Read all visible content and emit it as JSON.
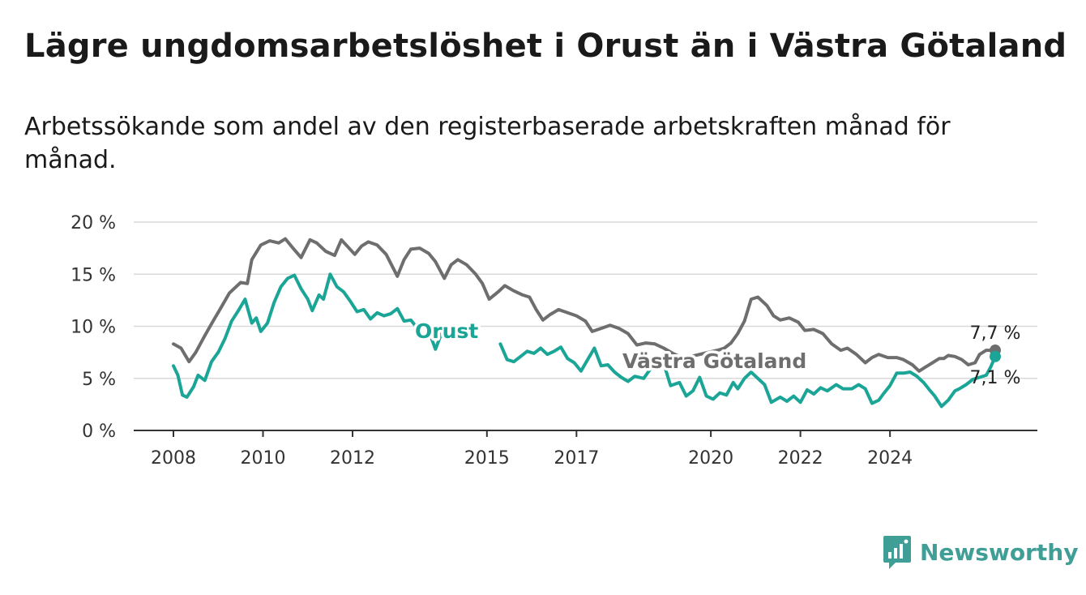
{
  "header": {
    "title": "Lägre ungdomsarbetslöshet i Orust än i Västra Götaland",
    "subtitle": "Arbetssökande som andel av den registerbaserade arbetskraften månad för månad."
  },
  "brand": {
    "name": "Newsworthy",
    "icon": "newsworthy-logo-icon",
    "color": "#3f9e96"
  },
  "chart_data": {
    "type": "line",
    "xlabel": "",
    "ylabel": "",
    "xlim": [
      2007.6,
      2025.6
    ],
    "ylim": [
      0,
      20
    ],
    "grid": true,
    "y_ticks": [
      0,
      5,
      10,
      15,
      20
    ],
    "y_tick_labels": [
      "0 %",
      "5 %",
      "10 %",
      "15 %",
      "20 %"
    ],
    "x_ticks": [
      2008,
      2010,
      2012,
      2015,
      2017,
      2020,
      2022,
      2024
    ],
    "x_tick_labels": [
      "2008",
      "2010",
      "2012",
      "2015",
      "2017",
      "2020",
      "2022",
      "2024"
    ],
    "series": [
      {
        "name": "Västra Götaland",
        "color": "#6e6e6e",
        "end_label": "7,7 %",
        "points": [
          [
            2008,
            8.3
          ],
          [
            2008.17,
            7.9
          ],
          [
            2008.35,
            6.6
          ],
          [
            2008.5,
            7.5
          ],
          [
            2008.7,
            9.1
          ],
          [
            2008.9,
            10.6
          ],
          [
            2009.05,
            11.7
          ],
          [
            2009.25,
            13.2
          ],
          [
            2009.5,
            14.2
          ],
          [
            2009.65,
            14.1
          ],
          [
            2009.75,
            16.4
          ],
          [
            2009.95,
            17.8
          ],
          [
            2010.15,
            18.2
          ],
          [
            2010.35,
            18.0
          ],
          [
            2010.5,
            18.4
          ],
          [
            2010.65,
            17.6
          ],
          [
            2010.85,
            16.6
          ],
          [
            2011.05,
            18.3
          ],
          [
            2011.2,
            18.0
          ],
          [
            2011.4,
            17.2
          ],
          [
            2011.6,
            16.8
          ],
          [
            2011.75,
            18.3
          ],
          [
            2011.9,
            17.6
          ],
          [
            2012.05,
            16.9
          ],
          [
            2012.2,
            17.7
          ],
          [
            2012.35,
            18.1
          ],
          [
            2012.55,
            17.8
          ],
          [
            2012.75,
            16.9
          ],
          [
            2013.0,
            14.8
          ],
          [
            2013.15,
            16.4
          ],
          [
            2013.3,
            17.4
          ],
          [
            2013.5,
            17.5
          ],
          [
            2013.7,
            17.0
          ],
          [
            2013.85,
            16.2
          ],
          [
            2014.05,
            14.6
          ],
          [
            2014.2,
            15.9
          ],
          [
            2014.35,
            16.4
          ],
          [
            2014.55,
            15.9
          ],
          [
            2014.75,
            15.0
          ],
          [
            2014.9,
            14.1
          ],
          [
            2015.05,
            12.6
          ],
          [
            2015.25,
            13.3
          ],
          [
            2015.4,
            13.9
          ],
          [
            2015.6,
            13.4
          ],
          [
            2015.8,
            13.0
          ],
          [
            2015.95,
            12.8
          ],
          [
            2016.1,
            11.6
          ],
          [
            2016.25,
            10.6
          ],
          [
            2016.4,
            11.1
          ],
          [
            2016.6,
            11.6
          ],
          [
            2016.8,
            11.3
          ],
          [
            2017.0,
            11.0
          ],
          [
            2017.2,
            10.5
          ],
          [
            2017.35,
            9.5
          ],
          [
            2017.55,
            9.8
          ],
          [
            2017.75,
            10.1
          ],
          [
            2017.95,
            9.8
          ],
          [
            2018.15,
            9.3
          ],
          [
            2018.35,
            8.2
          ],
          [
            2018.55,
            8.4
          ],
          [
            2018.75,
            8.3
          ],
          [
            2018.95,
            7.9
          ],
          [
            2019.15,
            7.4
          ],
          [
            2019.35,
            7.0
          ],
          [
            2019.55,
            7.1
          ],
          [
            2019.75,
            7.3
          ],
          [
            2019.95,
            7.5
          ],
          [
            2020.15,
            7.7
          ],
          [
            2020.3,
            7.9
          ],
          [
            2020.45,
            8.4
          ],
          [
            2020.6,
            9.3
          ],
          [
            2020.75,
            10.5
          ],
          [
            2020.9,
            12.6
          ],
          [
            2021.05,
            12.8
          ],
          [
            2021.25,
            12.0
          ],
          [
            2021.4,
            11.0
          ],
          [
            2021.55,
            10.6
          ],
          [
            2021.75,
            10.8
          ],
          [
            2021.95,
            10.4
          ],
          [
            2022.1,
            9.6
          ],
          [
            2022.3,
            9.7
          ],
          [
            2022.5,
            9.3
          ],
          [
            2022.7,
            8.3
          ],
          [
            2022.9,
            7.7
          ],
          [
            2023.05,
            7.9
          ],
          [
            2023.25,
            7.3
          ],
          [
            2023.45,
            6.5
          ],
          [
            2023.6,
            7.0
          ],
          [
            2023.75,
            7.3
          ],
          [
            2023.95,
            7.0
          ],
          [
            2024.15,
            7.0
          ],
          [
            2024.3,
            6.8
          ],
          [
            2024.5,
            6.3
          ],
          [
            2024.65,
            5.7
          ],
          [
            2024.8,
            6.1
          ],
          [
            2024.95,
            6.5
          ],
          [
            2025.1,
            6.9
          ],
          [
            2025.2,
            6.9
          ],
          [
            2025.3,
            7.2
          ],
          [
            2025.45,
            7.1
          ],
          [
            2025.6,
            6.8
          ],
          [
            2025.75,
            6.3
          ],
          [
            2025.9,
            6.5
          ],
          [
            2026.0,
            7.3
          ],
          [
            2026.15,
            7.7
          ],
          [
            2026.35,
            7.7
          ]
        ]
      },
      {
        "name": "Orust",
        "color": "#1aa597",
        "end_label": "7,1 %",
        "points": [
          [
            2008,
            6.2
          ],
          [
            2008.1,
            5.3
          ],
          [
            2008.2,
            3.4
          ],
          [
            2008.3,
            3.2
          ],
          [
            2008.45,
            4.2
          ],
          [
            2008.55,
            5.3
          ],
          [
            2008.7,
            4.8
          ],
          [
            2008.85,
            6.6
          ],
          [
            2009.0,
            7.5
          ],
          [
            2009.15,
            8.8
          ],
          [
            2009.3,
            10.5
          ],
          [
            2009.45,
            11.5
          ],
          [
            2009.6,
            12.6
          ],
          [
            2009.75,
            10.3
          ],
          [
            2009.85,
            10.8
          ],
          [
            2009.95,
            9.5
          ],
          [
            2010.1,
            10.3
          ],
          [
            2010.25,
            12.3
          ],
          [
            2010.4,
            13.8
          ],
          [
            2010.55,
            14.6
          ],
          [
            2010.7,
            14.9
          ],
          [
            2010.85,
            13.6
          ],
          [
            2011.0,
            12.6
          ],
          [
            2011.1,
            11.5
          ],
          [
            2011.25,
            13.0
          ],
          [
            2011.35,
            12.6
          ],
          [
            2011.5,
            15.0
          ],
          [
            2011.65,
            13.8
          ],
          [
            2011.8,
            13.3
          ],
          [
            2011.95,
            12.4
          ],
          [
            2012.1,
            11.4
          ],
          [
            2012.25,
            11.6
          ],
          [
            2012.4,
            10.7
          ],
          [
            2012.55,
            11.3
          ],
          [
            2012.7,
            11.0
          ],
          [
            2012.85,
            11.2
          ],
          [
            2013.0,
            11.7
          ],
          [
            2013.15,
            10.5
          ],
          [
            2013.3,
            10.6
          ],
          [
            2013.45,
            9.8
          ],
          [
            2013.6,
            8.9
          ],
          [
            2013.75,
            9.0
          ],
          [
            2013.85,
            7.8
          ],
          [
            2014.0,
            9.5
          ],
          [
            2014.15,
            9.5
          ],
          [
            2014.3,
            10.0
          ],
          [
            null,
            null
          ],
          [
            2015.3,
            8.3
          ],
          [
            2015.45,
            6.8
          ],
          [
            2015.6,
            6.6
          ],
          [
            2015.75,
            7.1
          ],
          [
            2015.9,
            7.6
          ],
          [
            2016.05,
            7.4
          ],
          [
            2016.2,
            7.9
          ],
          [
            2016.35,
            7.3
          ],
          [
            2016.5,
            7.6
          ],
          [
            2016.65,
            8.0
          ],
          [
            2016.8,
            6.9
          ],
          [
            2016.95,
            6.5
          ],
          [
            2017.1,
            5.7
          ],
          [
            2017.25,
            6.8
          ],
          [
            2017.4,
            7.9
          ],
          [
            2017.55,
            6.2
          ],
          [
            2017.7,
            6.3
          ],
          [
            2017.85,
            5.6
          ],
          [
            2018.0,
            5.1
          ],
          [
            2018.15,
            4.7
          ],
          [
            2018.3,
            5.2
          ],
          [
            2018.5,
            5.0
          ],
          [
            2018.65,
            5.9
          ],
          [
            2018.8,
            6.6
          ],
          [
            2018.95,
            6.4
          ],
          [
            2019.1,
            4.3
          ],
          [
            2019.3,
            4.6
          ],
          [
            2019.45,
            3.3
          ],
          [
            2019.6,
            3.8
          ],
          [
            2019.75,
            5.1
          ],
          [
            2019.9,
            3.3
          ],
          [
            2020.05,
            3.0
          ],
          [
            2020.2,
            3.6
          ],
          [
            2020.35,
            3.4
          ],
          [
            2020.5,
            4.6
          ],
          [
            2020.6,
            4.0
          ],
          [
            2020.75,
            5.0
          ],
          [
            2020.9,
            5.6
          ],
          [
            2021.05,
            5.0
          ],
          [
            2021.2,
            4.4
          ],
          [
            2021.35,
            2.7
          ],
          [
            2021.55,
            3.2
          ],
          [
            2021.7,
            2.8
          ],
          [
            2021.85,
            3.3
          ],
          [
            2022.0,
            2.7
          ],
          [
            2022.15,
            3.9
          ],
          [
            2022.3,
            3.5
          ],
          [
            2022.45,
            4.1
          ],
          [
            2022.6,
            3.8
          ],
          [
            2022.8,
            4.4
          ],
          [
            2022.95,
            4.0
          ],
          [
            2023.15,
            4.0
          ],
          [
            2023.3,
            4.4
          ],
          [
            2023.45,
            4.0
          ],
          [
            2023.6,
            2.6
          ],
          [
            2023.75,
            2.9
          ],
          [
            2023.85,
            3.5
          ],
          [
            2024.0,
            4.3
          ],
          [
            2024.15,
            5.5
          ],
          [
            2024.3,
            5.5
          ],
          [
            2024.45,
            5.6
          ],
          [
            2024.6,
            5.2
          ],
          [
            2024.75,
            4.6
          ],
          [
            2024.9,
            3.8
          ],
          [
            2025.0,
            3.3
          ],
          [
            2025.15,
            2.3
          ],
          [
            2025.3,
            2.9
          ],
          [
            2025.45,
            3.8
          ],
          [
            2025.55,
            4.0
          ],
          [
            2025.7,
            4.4
          ],
          [
            2025.85,
            4.9
          ],
          [
            2026.0,
            5.1
          ],
          [
            2026.15,
            5.3
          ],
          [
            2026.25,
            6.1
          ],
          [
            2026.35,
            7.1
          ]
        ]
      }
    ],
    "annotations": [
      {
        "text": "Orust",
        "series": "Orust"
      },
      {
        "text": "Västra Götaland",
        "series": "Västra Götaland"
      }
    ]
  }
}
